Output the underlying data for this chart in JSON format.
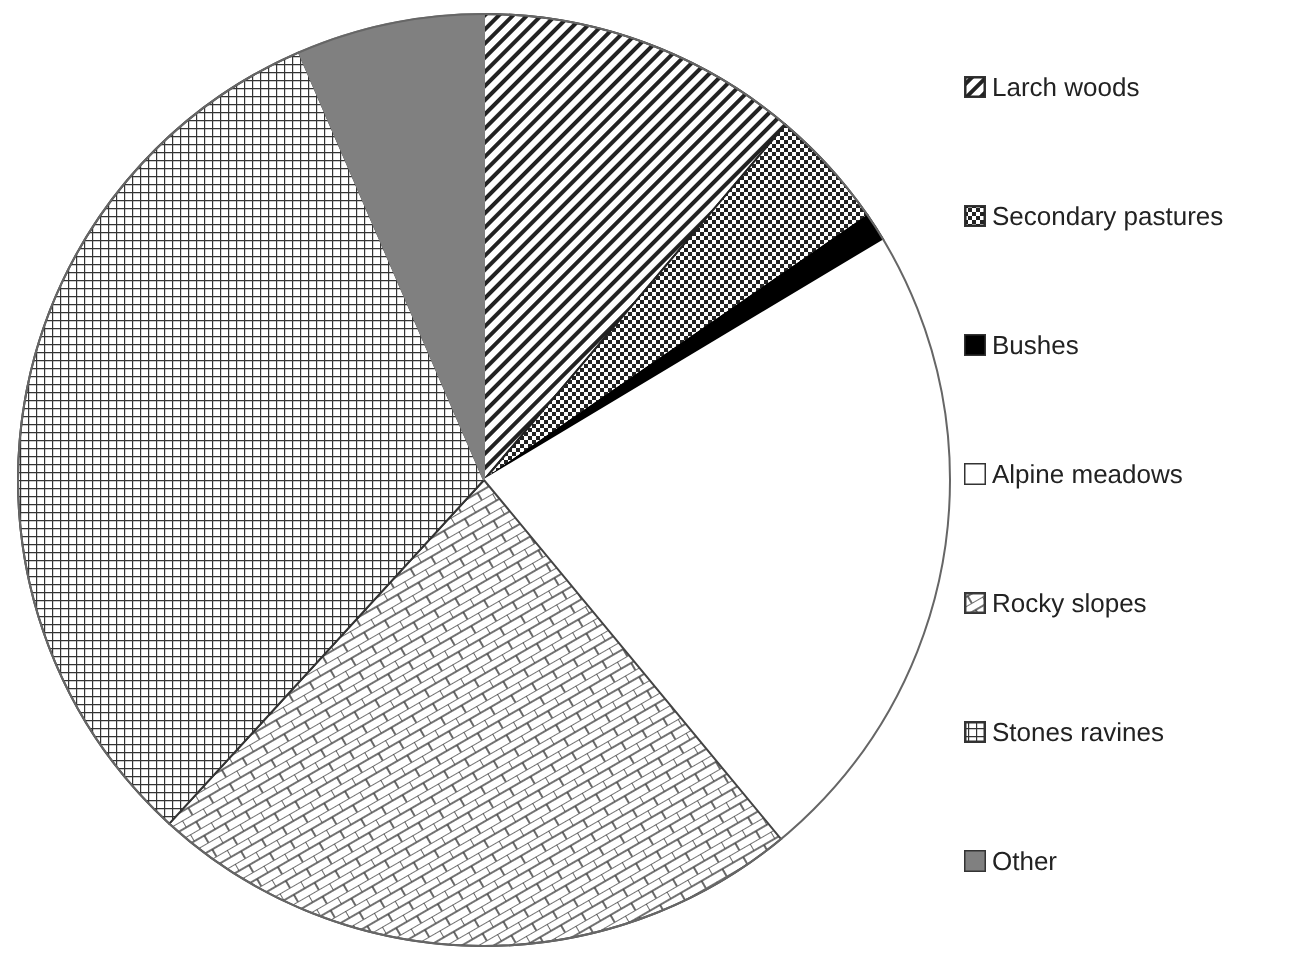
{
  "chart_data": {
    "type": "pie",
    "categories": [
      "Larch woods",
      "Secondary pastures",
      "Bushes",
      "Alpine meadows",
      "Rocky slopes",
      "Stones ravines",
      "Other"
    ],
    "values": [
      11.2,
      4.2,
      1.0,
      22.6,
      22.8,
      31.7,
      6.5
    ],
    "colors": [
      "#222222",
      "#222222",
      "#000000",
      "#ffffff",
      "#444444",
      "#333333",
      "#808080"
    ],
    "legend": "right"
  }
}
